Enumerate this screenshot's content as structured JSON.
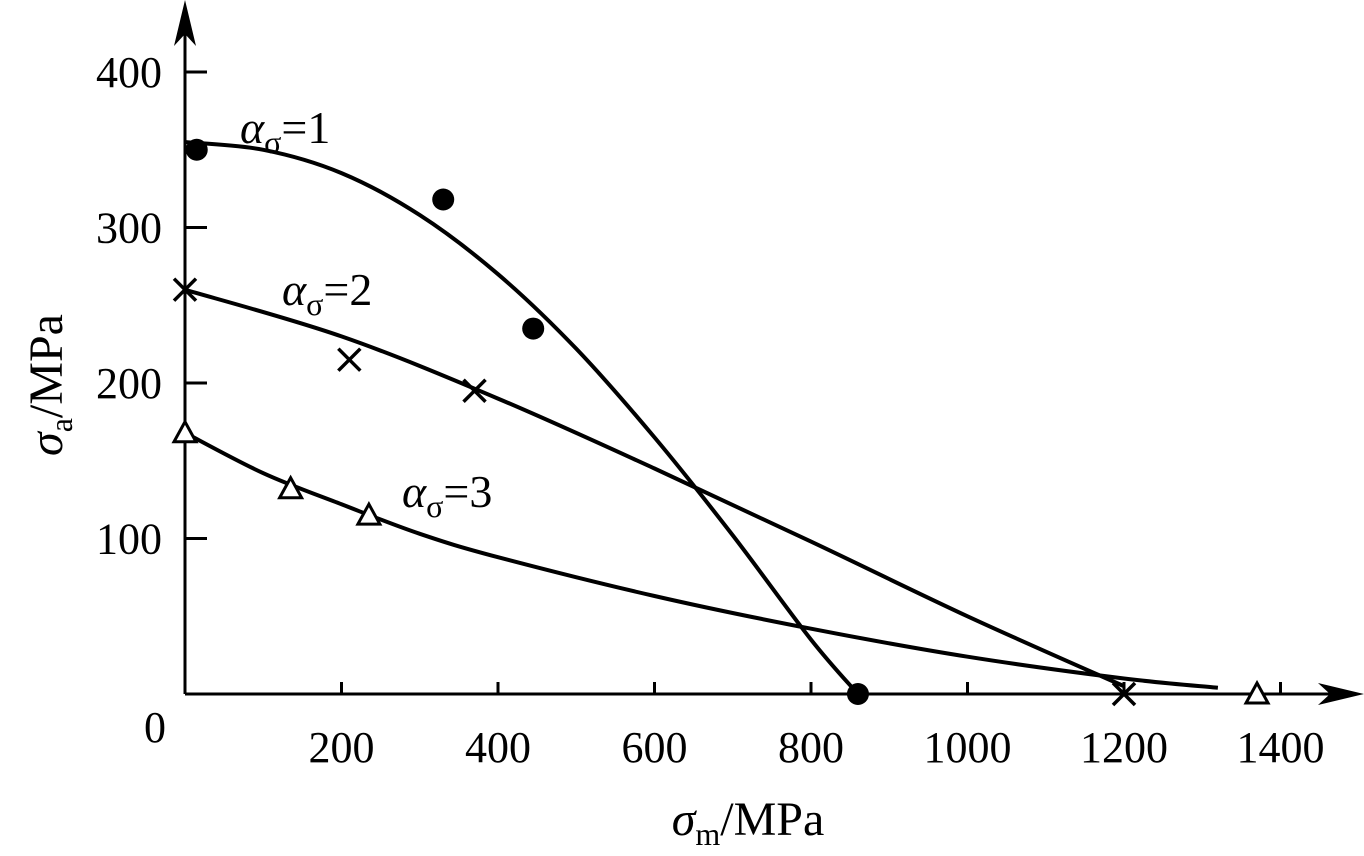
{
  "chart_data": {
    "type": "scatter",
    "xlabel": {
      "symbol": "σ",
      "sub": "m",
      "unit": "/MPa"
    },
    "ylabel": {
      "symbol": "σ",
      "sub": "a",
      "unit": "/MPa"
    },
    "xlim": [
      0,
      1500
    ],
    "ylim": [
      0,
      440
    ],
    "origin_label": "0",
    "x_ticks": [
      {
        "value": 200,
        "label": "200"
      },
      {
        "value": 400,
        "label": "400"
      },
      {
        "value": 600,
        "label": "600"
      },
      {
        "value": 800,
        "label": "800"
      },
      {
        "value": 1000,
        "label": "1000"
      },
      {
        "value": 1200,
        "label": "1200"
      },
      {
        "value": 1400,
        "label": "1400"
      }
    ],
    "y_ticks": [
      {
        "value": 100,
        "label": "100"
      },
      {
        "value": 200,
        "label": "200"
      },
      {
        "value": 300,
        "label": "300"
      },
      {
        "value": 400,
        "label": "400"
      }
    ],
    "series": [
      {
        "name": "ασ=1",
        "label": {
          "alpha": "α",
          "sub": "σ",
          "eq": "=1"
        },
        "marker": "circle",
        "points": [
          {
            "x": 15,
            "y": 350
          },
          {
            "x": 330,
            "y": 318
          },
          {
            "x": 445,
            "y": 235
          },
          {
            "x": 860,
            "y": 0
          }
        ],
        "curve": [
          {
            "x": 0,
            "y": 355
          },
          {
            "x": 100,
            "y": 350
          },
          {
            "x": 200,
            "y": 335
          },
          {
            "x": 300,
            "y": 308
          },
          {
            "x": 400,
            "y": 270
          },
          {
            "x": 500,
            "y": 222
          },
          {
            "x": 600,
            "y": 165
          },
          {
            "x": 700,
            "y": 102
          },
          {
            "x": 800,
            "y": 35
          },
          {
            "x": 860,
            "y": 0
          }
        ]
      },
      {
        "name": "ασ=2",
        "label": {
          "alpha": "α",
          "sub": "σ",
          "eq": "=2"
        },
        "marker": "cross",
        "points": [
          {
            "x": 0,
            "y": 260
          },
          {
            "x": 210,
            "y": 215
          },
          {
            "x": 370,
            "y": 195
          },
          {
            "x": 1200,
            "y": 0
          }
        ],
        "curve": [
          {
            "x": 0,
            "y": 260
          },
          {
            "x": 200,
            "y": 230
          },
          {
            "x": 400,
            "y": 190
          },
          {
            "x": 600,
            "y": 145
          },
          {
            "x": 800,
            "y": 98
          },
          {
            "x": 1000,
            "y": 50
          },
          {
            "x": 1200,
            "y": 5
          }
        ]
      },
      {
        "name": "ασ=3",
        "label": {
          "alpha": "α",
          "sub": "σ",
          "eq": "=3"
        },
        "marker": "triangle",
        "points": [
          {
            "x": 0,
            "y": 168
          },
          {
            "x": 135,
            "y": 132
          },
          {
            "x": 235,
            "y": 115
          },
          {
            "x": 1370,
            "y": 0
          }
        ],
        "curve": [
          {
            "x": 0,
            "y": 168
          },
          {
            "x": 100,
            "y": 142
          },
          {
            "x": 200,
            "y": 122
          },
          {
            "x": 300,
            "y": 103
          },
          {
            "x": 400,
            "y": 88
          },
          {
            "x": 600,
            "y": 63
          },
          {
            "x": 800,
            "y": 42
          },
          {
            "x": 1000,
            "y": 24
          },
          {
            "x": 1200,
            "y": 10
          },
          {
            "x": 1320,
            "y": 4
          }
        ]
      }
    ]
  }
}
